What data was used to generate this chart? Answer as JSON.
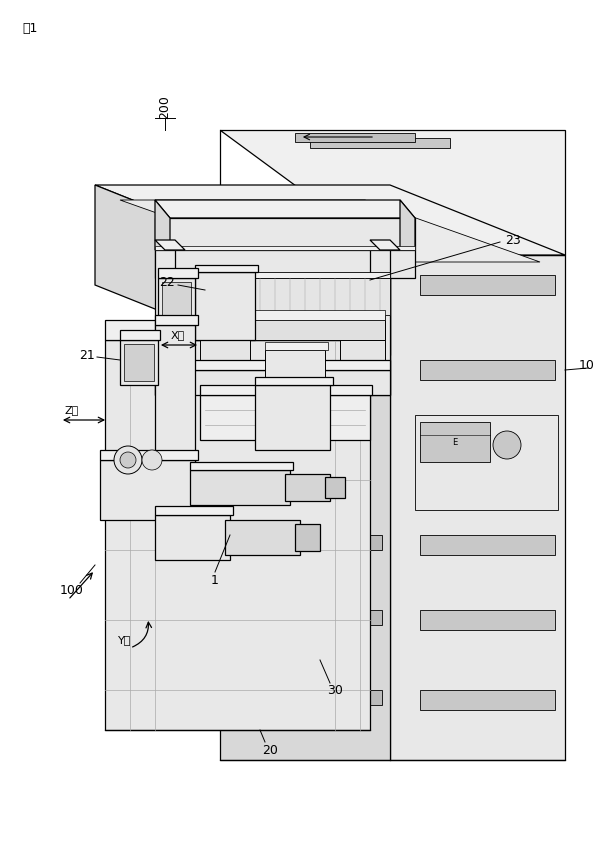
{
  "bg_color": "#ffffff",
  "line_color": "#000000",
  "figsize": [
    6.14,
    8.5
  ],
  "dpi": 100,
  "labels": {
    "fig_title": "図1",
    "label_200": "200",
    "label_10": "10",
    "label_23": "23",
    "label_22": "22",
    "label_21": "21",
    "label_1": "1",
    "label_20": "20",
    "label_30": "30",
    "label_100": "100",
    "x_axis": "X軸",
    "y_axis": "Y軸",
    "z_axis": "Z軸"
  }
}
